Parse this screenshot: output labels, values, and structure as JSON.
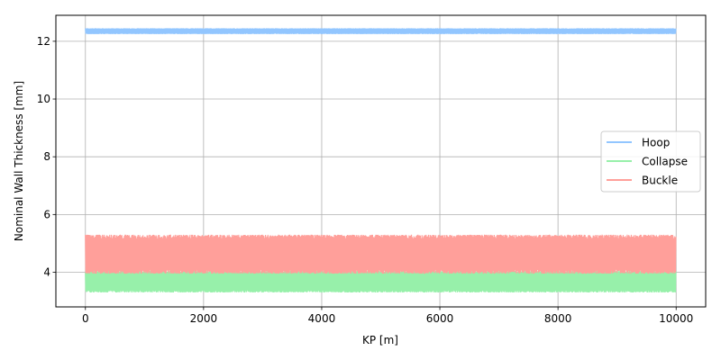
{
  "chart_data": {
    "type": "line",
    "title": "",
    "xlabel": "KP [m]",
    "ylabel": "Nominal Wall Thickness [mm]",
    "xlim": [
      -500,
      10500
    ],
    "ylim": [
      2.8,
      12.9
    ],
    "xticks": [
      0,
      2000,
      4000,
      6000,
      8000,
      10000
    ],
    "yticks": [
      4,
      6,
      8,
      10,
      12
    ],
    "grid": true,
    "legend_position": "center-right",
    "x_range": [
      0,
      10000
    ],
    "series": [
      {
        "name": "Hoop",
        "color": "#92c6ff",
        "band": [
          12.25,
          12.45
        ]
      },
      {
        "name": "Collapse",
        "color": "#97f0aa",
        "band": [
          3.3,
          4.05
        ]
      },
      {
        "name": "Buckle",
        "color": "#ff9f9a",
        "band": [
          3.95,
          5.3
        ]
      }
    ]
  }
}
